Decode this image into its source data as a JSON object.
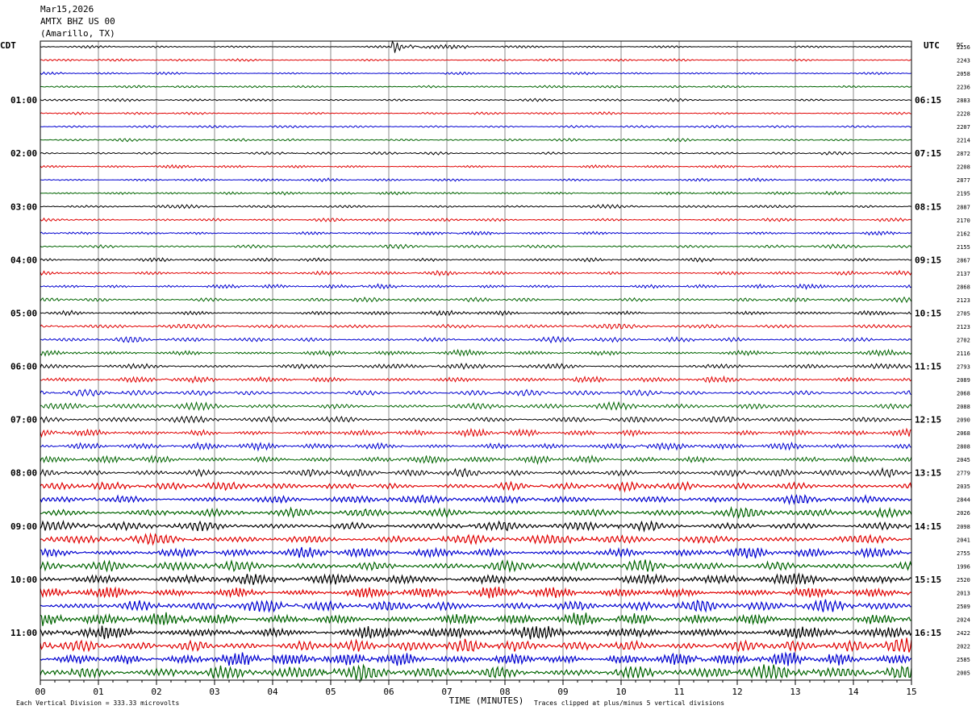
{
  "header": {
    "date": "Mar15,2026",
    "station": "AMTX BHZ US 00",
    "location": "(Amarillo, TX)"
  },
  "labels": {
    "left_tz": "CDT",
    "right_tz": "UTC",
    "dc": "DC",
    "xlabel": "TIME (MINUTES)",
    "scale_note": "Each Vertical Division =  333.33 microvolts",
    "clip_note": "Traces clipped at plus/minus 5 vertical divisions"
  },
  "chart_data": {
    "type": "line",
    "title": "",
    "xlabel": "TIME (MINUTES)",
    "ylabel": "",
    "xlim": [
      0,
      15
    ],
    "x_ticks": [
      "00",
      "01",
      "02",
      "03",
      "04",
      "05",
      "06",
      "07",
      "08",
      "09",
      "10",
      "11",
      "12",
      "13",
      "14",
      "15"
    ],
    "trace_colors": [
      "#000000",
      "#e00000",
      "#0000d0",
      "#006400"
    ],
    "trace_count": 48,
    "left_time_labels": [
      "01:00",
      "02:00",
      "03:00",
      "04:00",
      "05:00",
      "06:00",
      "07:00",
      "08:00",
      "09:00",
      "10:00",
      "11:00"
    ],
    "right_time_labels": [
      "06:15",
      "07:15",
      "08:15",
      "09:15",
      "10:15",
      "11:15",
      "12:15",
      "13:15",
      "14:15",
      "15:15",
      "16:15"
    ],
    "dc_offsets": [
      "2256",
      "2243",
      "2058",
      "2236",
      "2883",
      "2228",
      "2207",
      "2214",
      "2872",
      "2208",
      "2877",
      "2195",
      "2887",
      "2170",
      "2162",
      "2155",
      "2867",
      "2137",
      "2868",
      "2123",
      "2705",
      "2123",
      "2702",
      "2116",
      "2793",
      "2089",
      "2068",
      "2088",
      "2090",
      "2068",
      "2808",
      "2045",
      "2779",
      "2035",
      "2844",
      "2026",
      "2098",
      "2041",
      "2755",
      "1996",
      "2520",
      "2013",
      "2509",
      "2024",
      "2422",
      "2022",
      "2585",
      "2005"
    ],
    "events": [
      {
        "trace_index": 0,
        "minute_start": 6.05,
        "minute_end": 7.4,
        "peak": "clipped"
      }
    ]
  }
}
